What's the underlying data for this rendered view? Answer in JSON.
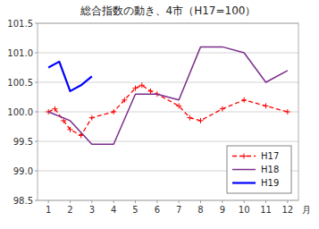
{
  "chart_data": {
    "type": "line",
    "title": "総合指数の動き、4市（H17=100）",
    "xlabel": "月",
    "xlim": [
      0.5,
      12.5
    ],
    "xticks": [
      1,
      2,
      3,
      4,
      5,
      6,
      7,
      8,
      9,
      10,
      11,
      12
    ],
    "ylim": [
      98.5,
      101.5
    ],
    "yticks": [
      98.5,
      {
        "value": 99,
        "label": "99.0"
      },
      99.5,
      {
        "value": 100,
        "label": "100.0"
      },
      100.5,
      {
        "value": 101,
        "label": "101.0"
      },
      101.5
    ],
    "grid": "y",
    "legend": "lower right",
    "series": [
      {
        "name": "H17",
        "color": "#ff0000",
        "line_style": "dashed",
        "marker": "plus",
        "x": [
          1,
          1.3,
          1.7,
          2,
          2.5,
          3,
          4,
          4.5,
          5,
          5.3,
          5.7,
          6,
          7,
          7.5,
          8,
          9,
          10,
          11,
          12
        ],
        "values": [
          100.0,
          100.05,
          99.85,
          99.7,
          99.6,
          99.9,
          100.0,
          100.2,
          100.4,
          100.45,
          100.35,
          100.3,
          100.1,
          99.9,
          99.85,
          100.05,
          100.2,
          100.1,
          100.0
        ]
      },
      {
        "name": "H18",
        "color": "#7b2d8b",
        "line_style": "solid",
        "x": [
          1,
          2,
          3,
          4,
          5,
          6,
          7,
          8,
          9,
          10,
          11,
          12
        ],
        "values": [
          100.0,
          99.85,
          99.45,
          99.45,
          100.3,
          100.3,
          100.2,
          101.1,
          101.1,
          101.0,
          100.5,
          100.7
        ]
      },
      {
        "name": "H19",
        "color": "#0000ff",
        "line_style": "solid",
        "x": [
          1,
          1.5,
          2,
          2.5,
          3
        ],
        "values": [
          100.75,
          100.85,
          100.35,
          100.45,
          100.6
        ]
      }
    ]
  }
}
